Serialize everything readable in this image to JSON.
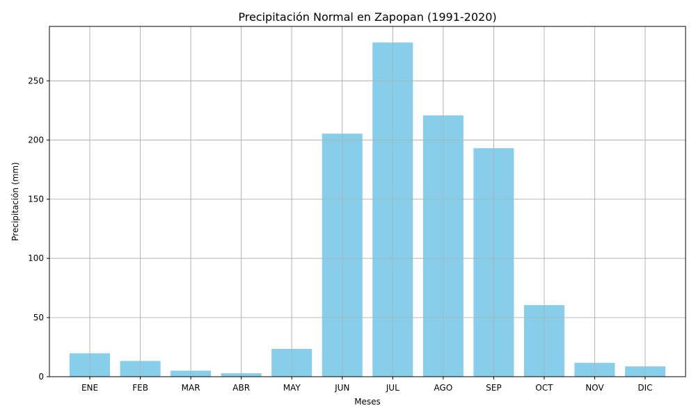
{
  "chart_data": {
    "type": "bar",
    "title": "Precipitación Normal en Zapopan (1991-2020)",
    "xlabel": "Meses",
    "ylabel": "Precipitación (mm)",
    "categories": [
      "ENE",
      "FEB",
      "MAR",
      "ABR",
      "MAY",
      "JUN",
      "JUL",
      "AGO",
      "SEP",
      "OCT",
      "NOV",
      "DIC"
    ],
    "values": [
      19.8,
      13.3,
      5.1,
      2.9,
      23.5,
      205.4,
      282.4,
      220.8,
      193.1,
      60.5,
      11.7,
      8.7
    ],
    "ylim": [
      0,
      296
    ],
    "yticks": [
      0,
      50,
      100,
      150,
      200,
      250
    ],
    "grid": true,
    "bar_color": "#87ceeb"
  }
}
